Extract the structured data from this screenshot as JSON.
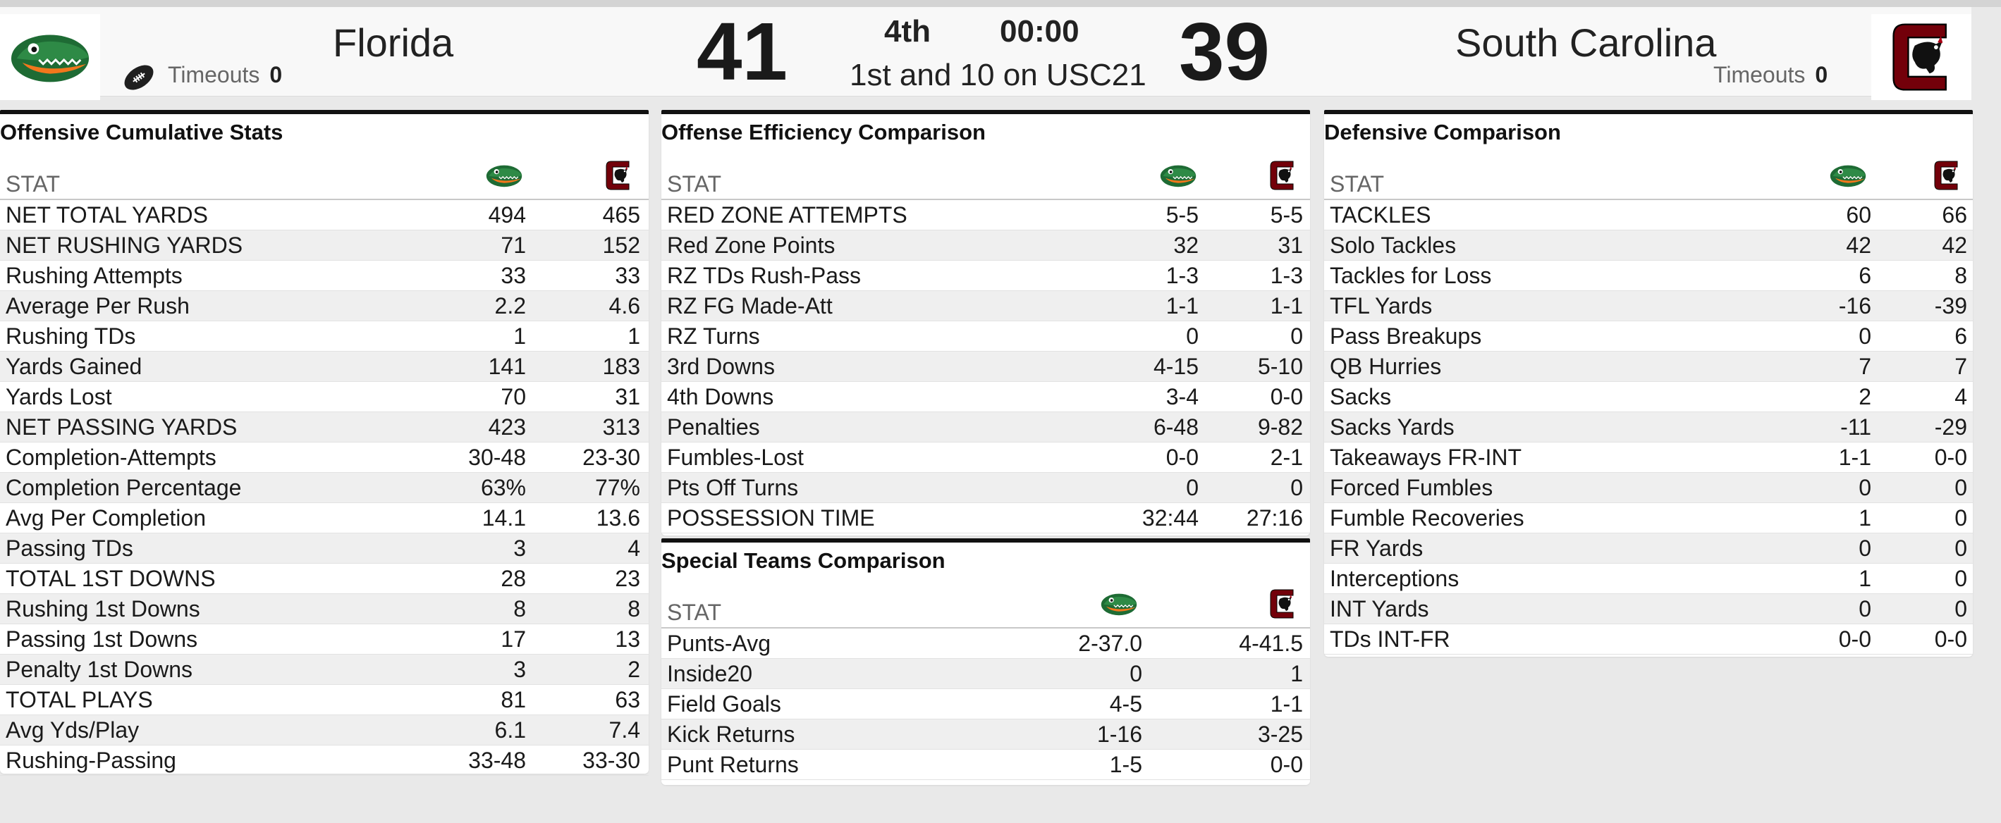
{
  "scoreboard": {
    "home": {
      "name": "Florida",
      "score": "41",
      "timeouts_label": "Timeouts",
      "timeouts": "0"
    },
    "away": {
      "name": "South Carolina",
      "score": "39",
      "timeouts_label": "Timeouts",
      "timeouts": "0"
    },
    "quarter": "4th",
    "clock": "00:00",
    "situation": "1st and 10 on USC21"
  },
  "colors": {
    "gator_green": "#1e6b34",
    "gator_orange": "#f2771c",
    "gamecock_garnet": "#73000a"
  },
  "icons": {
    "possession": "football-icon",
    "home_logo": "florida-gators-logo",
    "away_logo": "south-carolina-gamecocks-logo"
  },
  "offense": {
    "title": "Offensive Cumulative Stats",
    "stat_header": "STAT",
    "rows": [
      {
        "label": "NET TOTAL YARDS",
        "v1": "494",
        "v2": "465"
      },
      {
        "label": "NET RUSHING YARDS",
        "v1": "71",
        "v2": "152"
      },
      {
        "label": "Rushing Attempts",
        "v1": "33",
        "v2": "33"
      },
      {
        "label": "Average Per Rush",
        "v1": "2.2",
        "v2": "4.6"
      },
      {
        "label": "Rushing TDs",
        "v1": "1",
        "v2": "1"
      },
      {
        "label": "Yards Gained",
        "v1": "141",
        "v2": "183"
      },
      {
        "label": "Yards Lost",
        "v1": "70",
        "v2": "31"
      },
      {
        "label": "NET PASSING YARDS",
        "v1": "423",
        "v2": "313"
      },
      {
        "label": "Completion-Attempts",
        "v1": "30-48",
        "v2": "23-30"
      },
      {
        "label": "Completion Percentage",
        "v1": "63%",
        "v2": "77%"
      },
      {
        "label": "Avg Per Completion",
        "v1": "14.1",
        "v2": "13.6"
      },
      {
        "label": "Passing TDs",
        "v1": "3",
        "v2": "4"
      },
      {
        "label": "TOTAL 1ST DOWNS",
        "v1": "28",
        "v2": "23"
      },
      {
        "label": "Rushing 1st Downs",
        "v1": "8",
        "v2": "8"
      },
      {
        "label": "Passing 1st Downs",
        "v1": "17",
        "v2": "13"
      },
      {
        "label": "Penalty 1st Downs",
        "v1": "3",
        "v2": "2"
      },
      {
        "label": "TOTAL PLAYS",
        "v1": "81",
        "v2": "63"
      },
      {
        "label": "Avg Yds/Play",
        "v1": "6.1",
        "v2": "7.4"
      },
      {
        "label": "Rushing-Passing",
        "v1": "33-48",
        "v2": "33-30"
      }
    ]
  },
  "efficiency": {
    "title": "Offense Efficiency Comparison",
    "stat_header": "STAT",
    "rows": [
      {
        "label": "RED ZONE ATTEMPTS",
        "v1": "5-5",
        "v2": "5-5"
      },
      {
        "label": "Red Zone Points",
        "v1": "32",
        "v2": "31"
      },
      {
        "label": "RZ TDs Rush-Pass",
        "v1": "1-3",
        "v2": "1-3"
      },
      {
        "label": "RZ FG Made-Att",
        "v1": "1-1",
        "v2": "1-1"
      },
      {
        "label": "RZ Turns",
        "v1": "0",
        "v2": "0"
      },
      {
        "label": "3rd Downs",
        "v1": "4-15",
        "v2": "5-10"
      },
      {
        "label": "4th Downs",
        "v1": "3-4",
        "v2": "0-0"
      },
      {
        "label": "Penalties",
        "v1": "6-48",
        "v2": "9-82"
      },
      {
        "label": "Fumbles-Lost",
        "v1": "0-0",
        "v2": "2-1"
      },
      {
        "label": "Pts Off Turns",
        "v1": "0",
        "v2": "0"
      },
      {
        "label": "POSSESSION TIME",
        "v1": "32:44",
        "v2": "27:16"
      }
    ]
  },
  "special": {
    "title": "Special Teams Comparison",
    "stat_header": "STAT",
    "rows": [
      {
        "label": "Punts-Avg",
        "v1": "2-37.0",
        "v2": "4-41.5"
      },
      {
        "label": "Inside20",
        "v1": "0",
        "v2": "1"
      },
      {
        "label": "Field Goals",
        "v1": "4-5",
        "v2": "1-1"
      },
      {
        "label": "Kick Returns",
        "v1": "1-16",
        "v2": "3-25"
      },
      {
        "label": "Punt Returns",
        "v1": "1-5",
        "v2": "0-0"
      }
    ]
  },
  "defense": {
    "title": "Defensive Comparison",
    "stat_header": "STAT",
    "rows": [
      {
        "label": "TACKLES",
        "v1": "60",
        "v2": "66"
      },
      {
        "label": "Solo Tackles",
        "v1": "42",
        "v2": "42"
      },
      {
        "label": "Tackles for Loss",
        "v1": "6",
        "v2": "8"
      },
      {
        "label": "TFL Yards",
        "v1": "-16",
        "v2": "-39"
      },
      {
        "label": "Pass Breakups",
        "v1": "0",
        "v2": "6"
      },
      {
        "label": "QB Hurries",
        "v1": "7",
        "v2": "7"
      },
      {
        "label": "Sacks",
        "v1": "2",
        "v2": "4"
      },
      {
        "label": "Sacks Yards",
        "v1": "-11",
        "v2": "-29"
      },
      {
        "label": "Takeaways FR-INT",
        "v1": "1-1",
        "v2": "0-0"
      },
      {
        "label": "Forced Fumbles",
        "v1": "0",
        "v2": "0"
      },
      {
        "label": "Fumble Recoveries",
        "v1": "1",
        "v2": "0"
      },
      {
        "label": "FR Yards",
        "v1": "0",
        "v2": "0"
      },
      {
        "label": "Interceptions",
        "v1": "1",
        "v2": "0"
      },
      {
        "label": "INT Yards",
        "v1": "0",
        "v2": "0"
      },
      {
        "label": "TDs INT-FR",
        "v1": "0-0",
        "v2": "0-0"
      }
    ]
  }
}
